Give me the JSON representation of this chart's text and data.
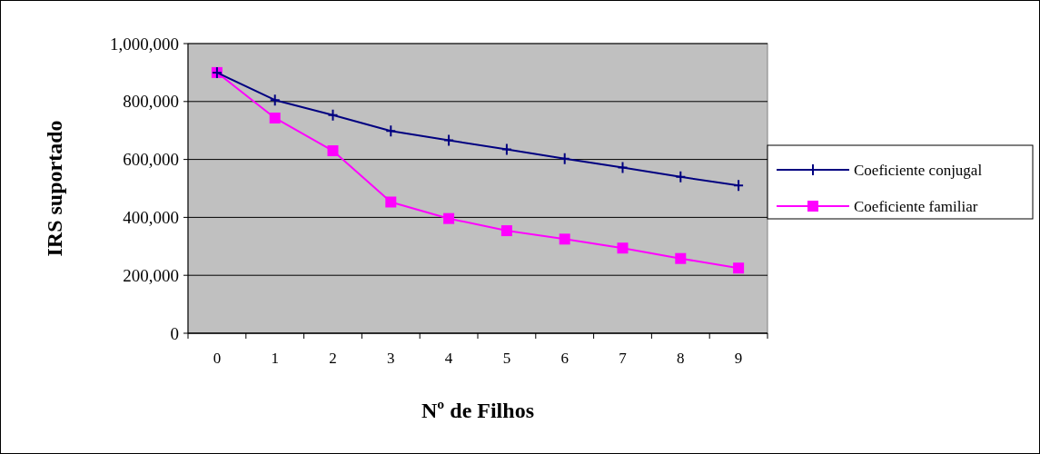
{
  "chart_data": {
    "type": "line",
    "xlabel": "Nº de Filhos",
    "ylabel": "IRS suportado",
    "categories": [
      "0",
      "1",
      "2",
      "3",
      "4",
      "5",
      "6",
      "7",
      "8",
      "9"
    ],
    "series": [
      {
        "name": "Coeficiente conjugal",
        "color": "#000080",
        "marker": "cross",
        "values": [
          900000,
          805000,
          753000,
          698000,
          666000,
          635000,
          603000,
          572000,
          540000,
          510000
        ]
      },
      {
        "name": "Coeficiente familiar",
        "color": "#ff00ff",
        "marker": "square",
        "values": [
          900000,
          743000,
          630000,
          453000,
          396000,
          354000,
          325000,
          294000,
          258000,
          225000
        ]
      }
    ],
    "ylim": [
      0,
      1000000
    ],
    "yticks": [
      0,
      {
        "value": 200000,
        "label": "200,000"
      },
      {
        "value": 400000,
        "label": "400,000"
      },
      {
        "value": 600000,
        "label": "600,000"
      },
      {
        "value": 800000,
        "label": "800,000"
      },
      {
        "value": 1000000,
        "label": "1,000,000"
      }
    ],
    "grid": "y",
    "legend": "right"
  }
}
